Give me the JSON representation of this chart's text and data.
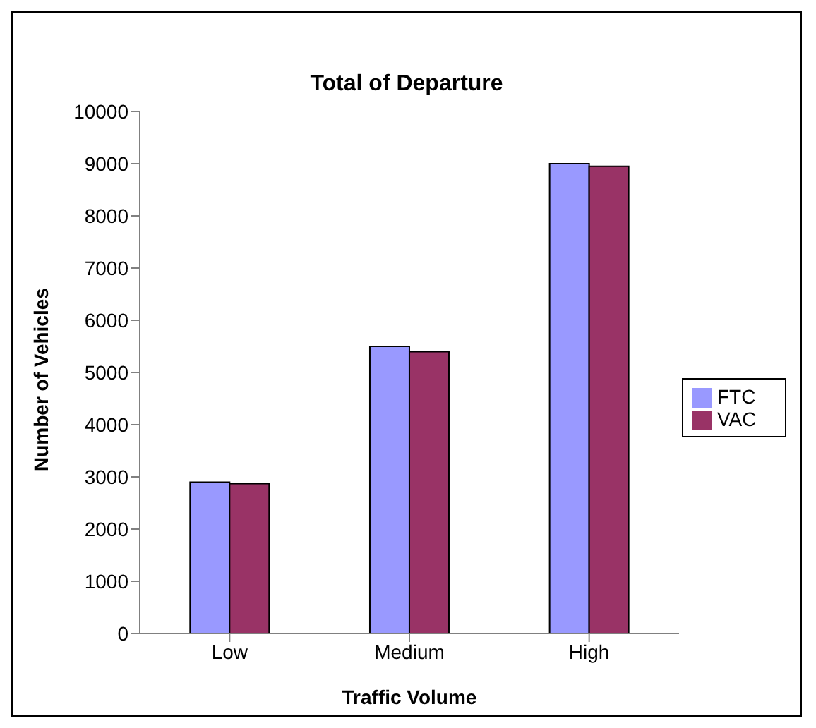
{
  "chart_data": {
    "type": "bar",
    "title": "Total of Departure",
    "xlabel": "Traffic Volume",
    "ylabel": "Number of Vehicles",
    "categories": [
      "Low",
      "Medium",
      "High"
    ],
    "series": [
      {
        "name": "FTC",
        "color": "#9999ff",
        "values": [
          2900,
          5500,
          9000
        ]
      },
      {
        "name": "VAC",
        "color": "#993366",
        "values": [
          2870,
          5400,
          8950
        ]
      }
    ],
    "ylim": [
      0,
      10000
    ],
    "yticks": [
      0,
      1000,
      2000,
      3000,
      4000,
      5000,
      6000,
      7000,
      8000,
      9000,
      10000
    ],
    "grid": false,
    "legend": "right"
  }
}
